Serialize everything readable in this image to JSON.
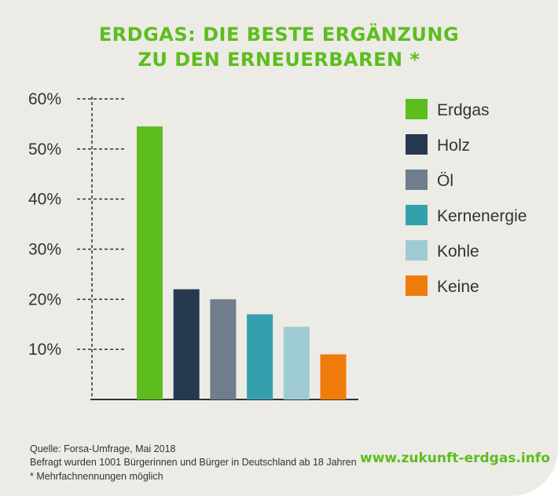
{
  "title": {
    "line1": "ERDGAS: DIE BESTE ERGÄNZUNG",
    "line2": "ZU DEN ERNEUERBAREN *"
  },
  "chart_data": {
    "type": "bar",
    "title": "ERDGAS: DIE BESTE ERGÄNZUNG ZU DEN ERNEUERBAREN *",
    "categories": [
      "Erdgas",
      "Holz",
      "Öl",
      "Kernenergie",
      "Kohle",
      "Keine"
    ],
    "values": [
      54.5,
      22,
      20,
      17,
      14.5,
      9
    ],
    "colors": [
      "#5dbd1f",
      "#26394e",
      "#6f7d8c",
      "#35a0ad",
      "#9ecbd3",
      "#ef7b0b"
    ],
    "y_ticks": [
      "10%",
      "20%",
      "30%",
      "40%",
      "50%",
      "60%"
    ],
    "ylim": [
      0,
      60
    ],
    "grid": false,
    "legend_placement": "right"
  },
  "footer": {
    "source_line": "Quelle: Forsa-Umfrage, Mai 2018",
    "survey_line": "Befragt wurden 1001 Bürgerinnen und Bürger in Deutschland ab 18 Jahren",
    "note_line": "* Mehrfachnennungen möglich",
    "url": "www.zukunft-erdgas.info"
  }
}
